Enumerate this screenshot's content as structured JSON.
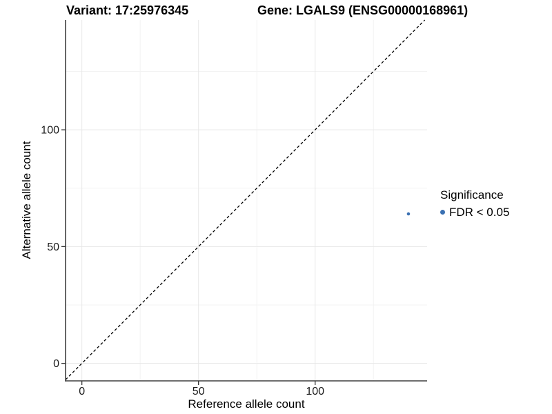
{
  "chart_data": {
    "type": "scatter",
    "titles": {
      "left": "Variant: 17:25976345",
      "right": "Gene: LGALS9 (ENSG00000168961)"
    },
    "xlabel": "Reference allele count",
    "ylabel": "Alternative allele count",
    "xlim": [
      -7,
      148
    ],
    "ylim": [
      -7.5,
      147
    ],
    "xticks": [
      0,
      50,
      100
    ],
    "yticks": [
      0,
      50,
      100
    ],
    "xticks_minor": [
      25,
      75,
      125
    ],
    "yticks_minor": [
      25,
      75,
      125
    ],
    "grid": "major and minor gridlines, white panel background",
    "points": [
      {
        "x": 140,
        "y": 64,
        "group": "FDR < 0.05"
      }
    ],
    "identity_line": {
      "slope": 1,
      "intercept": 0,
      "style": "dashed",
      "color": "#000000"
    },
    "legend": {
      "title": "Significance",
      "position": "right",
      "entries": [
        {
          "label": "FDR < 0.05",
          "color": "#3a70b2"
        }
      ]
    },
    "colors": {
      "point": "#3a70b2",
      "axis_line": "#3f3f3f",
      "tick_mark": "#333333",
      "tick_label": "#1a1a1a",
      "grid_major": "#e7e7e7",
      "grid_minor": "#f3f3f3"
    }
  }
}
